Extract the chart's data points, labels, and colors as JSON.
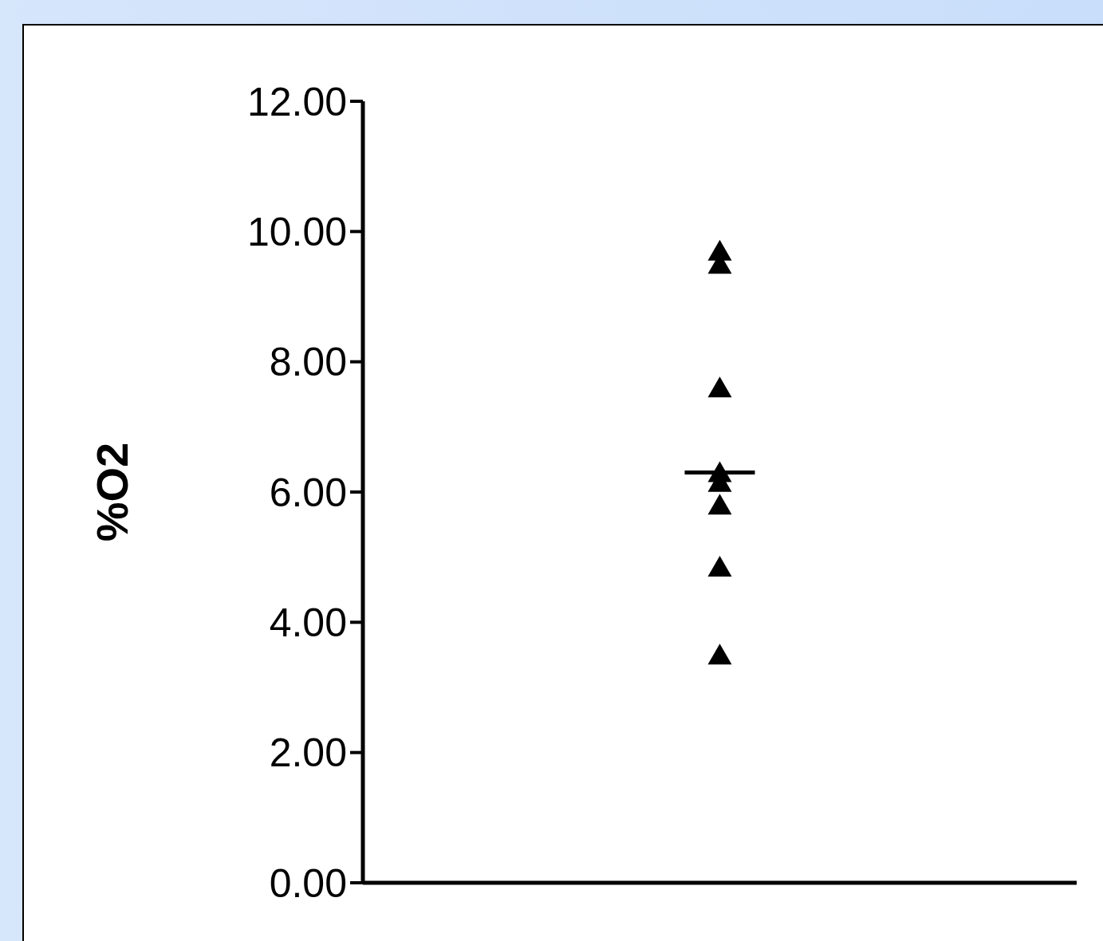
{
  "chart_data": {
    "type": "scatter",
    "ylabel": "%O2",
    "categories": [
      null
    ],
    "ylim": [
      0,
      12
    ],
    "yticks": [
      {
        "value": 0,
        "label": "0.00"
      },
      {
        "value": 2,
        "label": "2.00"
      },
      {
        "value": 4,
        "label": "4.00"
      },
      {
        "value": 6,
        "label": "6.00"
      },
      {
        "value": 8,
        "label": "8.00"
      },
      {
        "value": 10,
        "label": "10.00"
      },
      {
        "value": 12,
        "label": "12.00"
      }
    ],
    "tick_labels": "y",
    "legend": false,
    "marker": "triangle",
    "series": [
      {
        "color": "#000000",
        "x": [
          null,
          null,
          null,
          null,
          null,
          null,
          null,
          null
        ],
        "values": [
          9.7,
          9.5,
          7.6,
          6.3,
          6.15,
          5.8,
          4.85,
          3.5
        ]
      }
    ],
    "ref_lines": [
      {
        "axis": "y",
        "value": 6.3,
        "color": "#000000"
      }
    ]
  }
}
